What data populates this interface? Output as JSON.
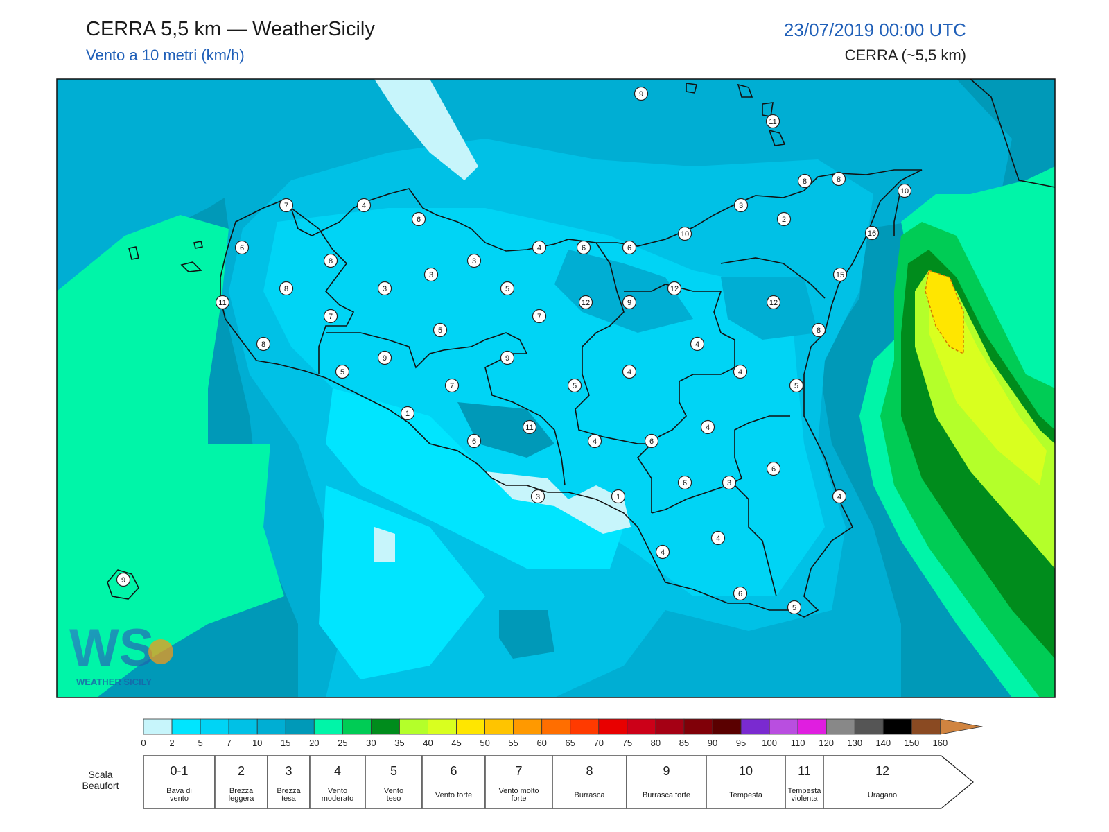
{
  "header": {
    "title": "CERRA 5,5 km — WeatherSicily",
    "subtitle": "Vento a 10 metri (km/h)",
    "datetime": "23/07/2019 00:00 UTC",
    "model": "CERRA (~5,5 km)"
  },
  "logo": {
    "text": "WEATHER SICILY",
    "letters": "WS"
  },
  "station_values": [
    9,
    11,
    8,
    10,
    7,
    4,
    6,
    16,
    6,
    3,
    2,
    8,
    6,
    4,
    6,
    10,
    11,
    8,
    3,
    3,
    3,
    5,
    15,
    8,
    8,
    7,
    12,
    9,
    12,
    12,
    7,
    5,
    8,
    5,
    9,
    9,
    4,
    5,
    4,
    7,
    5,
    1,
    11,
    4,
    4,
    4,
    6,
    4,
    6,
    3,
    6,
    3,
    1,
    4,
    4,
    6,
    9,
    6,
    5
  ],
  "colorbar": {
    "ticks": [
      "0",
      "2",
      "5",
      "7",
      "10",
      "15",
      "20",
      "25",
      "30",
      "35",
      "40",
      "45",
      "50",
      "55",
      "60",
      "65",
      "70",
      "75",
      "80",
      "85",
      "90",
      "95",
      "100",
      "110",
      "120",
      "130",
      "140",
      "150",
      "160"
    ],
    "colors": [
      "#c7f5fb",
      "#00e5ff",
      "#00d4f5",
      "#00c1e6",
      "#00aed3",
      "#0099b8",
      "#00f5a8",
      "#00cc55",
      "#008c1c",
      "#b4ff2a",
      "#d9ff1f",
      "#ffe600",
      "#ffc400",
      "#ff9900",
      "#ff6e00",
      "#ff3a00",
      "#e80000",
      "#cc0018",
      "#a50014",
      "#800008",
      "#5a0000",
      "#7a2ad0",
      "#b94ee0",
      "#e01ee0",
      "#888888",
      "#555555",
      "#000000",
      "#8a4a22",
      "#d08440"
    ]
  },
  "beaufort": {
    "label": "Scala Beaufort",
    "classes": [
      {
        "num": "0-1",
        "name": "Bava di vento"
      },
      {
        "num": "2",
        "name": "Brezza leggera"
      },
      {
        "num": "3",
        "name": "Brezza tesa"
      },
      {
        "num": "4",
        "name": "Vento moderato"
      },
      {
        "num": "5",
        "name": "Vento teso"
      },
      {
        "num": "6",
        "name": "Vento forte"
      },
      {
        "num": "7",
        "name": "Vento molto forte"
      },
      {
        "num": "8",
        "name": "Burrasca"
      },
      {
        "num": "9",
        "name": "Burrasca forte"
      },
      {
        "num": "10",
        "name": "Tempesta"
      },
      {
        "num": "11",
        "name": "Tempesta violenta"
      },
      {
        "num": "12",
        "name": "Uragano"
      }
    ]
  }
}
